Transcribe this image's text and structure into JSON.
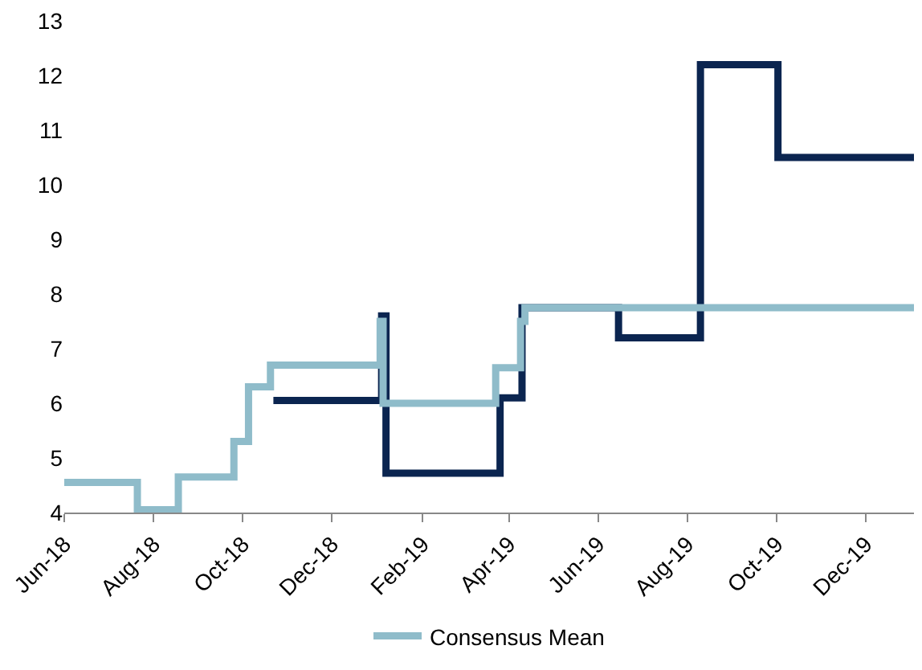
{
  "chart_data": {
    "type": "step",
    "series": [
      {
        "color": "#0b2550",
        "x": [
          "2018-10-22",
          "2019-01-04",
          "2019-01-07",
          "2019-03-26",
          "2019-04-10",
          "2019-06-15",
          "2019-08-10",
          "2019-10-02",
          "2020-01-03"
        ],
        "values": [
          6.05,
          7.6,
          4.72,
          6.1,
          7.75,
          7.2,
          12.2,
          10.5,
          10.5
        ]
      },
      {
        "name": "Consensus Mean",
        "color": "#8fbcca",
        "x": [
          "2018-06-01",
          "2018-07-21",
          "2018-08-18",
          "2018-09-25",
          "2018-10-05",
          "2018-10-20",
          "2019-01-03",
          "2019-01-05",
          "2019-03-23",
          "2019-04-09",
          "2019-04-12",
          "2020-01-03"
        ],
        "values": [
          4.55,
          4.05,
          4.65,
          5.3,
          6.3,
          6.7,
          7.5,
          6.0,
          6.65,
          7.5,
          7.75,
          7.75
        ]
      }
    ],
    "xlim": [
      "2018-06-01",
      "2020-01-03"
    ],
    "xticks": [
      {
        "value": "2018-06-01",
        "label": "Jun-18"
      },
      {
        "value": "2018-08-01",
        "label": "Aug-18"
      },
      {
        "value": "2018-10-01",
        "label": "Oct-18"
      },
      {
        "value": "2018-12-01",
        "label": "Dec-18"
      },
      {
        "value": "2019-02-01",
        "label": "Feb-19"
      },
      {
        "value": "2019-04-01",
        "label": "Apr-19"
      },
      {
        "value": "2019-06-01",
        "label": "Jun-19"
      },
      {
        "value": "2019-08-01",
        "label": "Aug-19"
      },
      {
        "value": "2019-10-01",
        "label": "Oct-19"
      },
      {
        "value": "2019-12-01",
        "label": "Dec-19"
      }
    ],
    "ylim": [
      4,
      13
    ],
    "yticks": [
      4,
      5,
      6,
      7,
      8,
      9,
      10,
      11,
      12,
      13
    ],
    "legend": "bottom",
    "marker": "none",
    "line_style": "solid"
  }
}
